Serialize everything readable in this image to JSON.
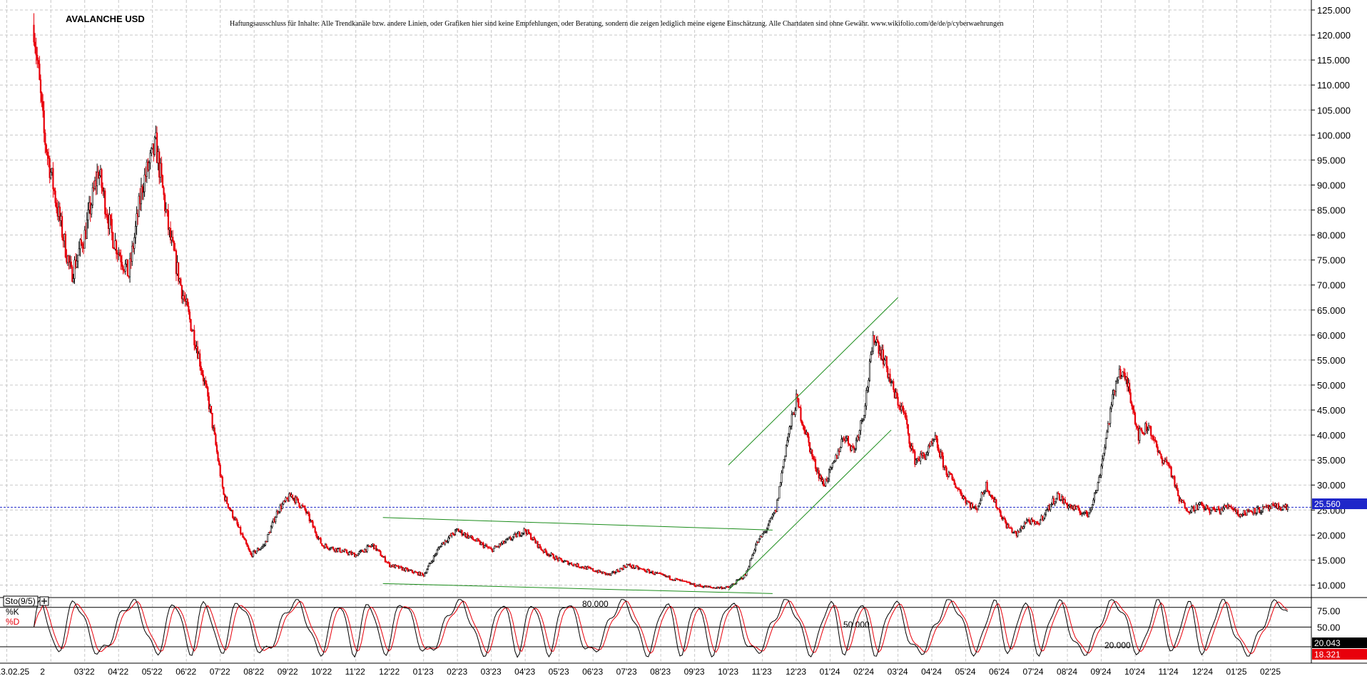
{
  "chart_data": [
    {
      "type": "candlestick",
      "title": "AVALANCHE USD",
      "disclaimer": "Haftungsausschluss für Inhalte: Alle Trendkanäle bzw. andere Linien, oder Grafiken hier sind keine Empfehlungen, oder Beratung, sondern die zeigen lediglich meine eigene Einschätzung. Alle Chartdaten sind ohne Gewähr.  www.wikifolio.com/de/de/p/cyberwaehrungen",
      "ylim": [
        7.5,
        127
      ],
      "y_ticks": [
        "10.000",
        "15.000",
        "20.000",
        "25.000",
        "30.000",
        "35.000",
        "40.000",
        "45.000",
        "50.000",
        "55.000",
        "60.000",
        "65.000",
        "70.000",
        "75.000",
        "80.000",
        "85.000",
        "90.000",
        "95.000",
        "100.000",
        "105.000",
        "110.000",
        "115.000",
        "120.000",
        "125.000"
      ],
      "last_price": "25.560",
      "last_value": 25.56,
      "x_tick_labels": [
        "13.02.25",
        "2",
        "03'22",
        "04'22",
        "05'22",
        "06'22",
        "07'22",
        "08'22",
        "09'22",
        "10'22",
        "11'22",
        "12'22",
        "01'23",
        "02'23",
        "03'23",
        "04'23",
        "05'23",
        "06'23",
        "07'23",
        "08'23",
        "09'23",
        "10'23",
        "11'23",
        "12'23",
        "01'24",
        "02'24",
        "03'24",
        "04'24",
        "05'24",
        "06'24",
        "07'24",
        "08'24",
        "09'24",
        "10'24",
        "11'24",
        "12'24",
        "01'25",
        "02'25"
      ],
      "x_month_index": [
        -0.8,
        0.5,
        1.5,
        2.5,
        3.5,
        4.5,
        5.5,
        6.5,
        7.5,
        8.5,
        9.5,
        10.5,
        11.5,
        12.5,
        13.5,
        14.5,
        15.5,
        16.5,
        17.5,
        18.5,
        19.5,
        20.5,
        21.5,
        22.5,
        23.5,
        24.5,
        25.5,
        26.5,
        27.5,
        28.5,
        29.5,
        30.5,
        31.5,
        32.5,
        33.5,
        34.5,
        35.5,
        36.5
      ],
      "price_path_months": [
        0,
        0.3,
        0.7,
        1.1,
        1.5,
        1.9,
        2.3,
        2.8,
        3.2,
        3.6,
        4.0,
        4.4,
        4.8,
        5.2,
        5.6,
        6.0,
        6.4,
        6.8,
        7.2,
        7.6,
        8.0,
        8.5,
        9.0,
        9.5,
        10.0,
        10.5,
        11.0,
        11.5,
        12.0,
        12.5,
        13.0,
        13.5,
        14.0,
        14.5,
        15.0,
        15.5,
        16.0,
        16.5,
        17.0,
        17.5,
        18.0,
        18.5,
        19.0,
        19.5,
        20.0,
        20.5,
        21.0,
        21.3,
        21.6,
        21.9,
        22.2,
        22.5,
        22.8,
        23.0,
        23.3,
        23.6,
        23.9,
        24.2,
        24.5,
        24.8,
        25.1,
        25.4,
        25.7,
        25.8,
        26.0,
        26.3,
        26.6,
        26.9,
        27.2,
        27.5,
        27.8,
        28.1,
        28.4,
        28.7,
        29.0,
        29.3,
        29.6,
        29.9,
        30.2,
        30.5,
        30.8,
        31.1,
        31.4,
        31.7,
        32.0,
        32.3,
        32.6,
        32.9,
        33.2,
        33.5,
        33.8,
        34.1,
        34.4,
        34.7,
        35.0,
        35.3,
        35.6,
        35.9,
        36.2,
        36.5,
        36.8,
        37.0,
        37.1
      ],
      "price_path_values": [
        122,
        100,
        85,
        72,
        80,
        93,
        80,
        72,
        90,
        98,
        80,
        68,
        58,
        45,
        28,
        22,
        16,
        18,
        25,
        28,
        25,
        18,
        17,
        16,
        18,
        14,
        13,
        12,
        18,
        21,
        19,
        17,
        19,
        21,
        17,
        15,
        14,
        13,
        12,
        14,
        13,
        12,
        11,
        10,
        9.5,
        9.5,
        12,
        18,
        21,
        25,
        38,
        47,
        40,
        35,
        30,
        34,
        40,
        37,
        45,
        60,
        55,
        48,
        44,
        40,
        35,
        36,
        39,
        33,
        30,
        27,
        25,
        30,
        26,
        22,
        20,
        23,
        22,
        25,
        28,
        26,
        25,
        24,
        30,
        42,
        53,
        50,
        40,
        42,
        36,
        34,
        27,
        25,
        26,
        25,
        25,
        26,
        24,
        25,
        25,
        25.5,
        25.6,
        25.56,
        25.56
      ],
      "trendlines": [
        {
          "from": [
            10.3,
            23.5
          ],
          "to": [
            21.8,
            21.0
          ]
        },
        {
          "from": [
            10.3,
            10.3
          ],
          "to": [
            21.8,
            8.3
          ]
        },
        {
          "from": [
            20.5,
            9.0
          ],
          "to": [
            25.3,
            41.0
          ]
        },
        {
          "from": [
            20.5,
            34.0
          ],
          "to": [
            25.5,
            67.5
          ]
        }
      ]
    },
    {
      "type": "line",
      "title": "Sto(9/5)",
      "ylim": [
        -5,
        95
      ],
      "y_ticks": [
        "75.00",
        "50.00",
        "25.00"
      ],
      "levels": [
        {
          "value": 80,
          "label": "80.000"
        },
        {
          "value": 50,
          "label": "50.000"
        },
        {
          "value": 20,
          "label": "20.000"
        }
      ],
      "series": [
        {
          "name": "%K",
          "color": "#000000"
        },
        {
          "name": "%D",
          "color": "#e8000b"
        }
      ],
      "last_values": [
        "20.043",
        "18.321"
      ]
    }
  ]
}
